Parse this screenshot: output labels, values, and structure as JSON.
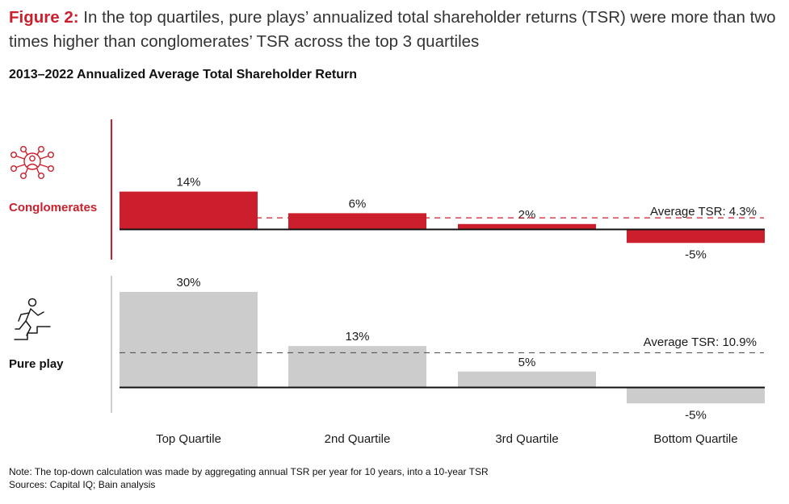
{
  "header": {
    "figure_label": "Figure 2:",
    "figure_title": "In the top quartiles, pure plays’ annualized total shareholder returns (TSR) were more than two times higher than conglomerates’ TSR across the top 3 quartiles",
    "subtitle": "2013–2022 Annualized Average Total Shareholder Return"
  },
  "groups": {
    "conglomerates": {
      "label": "Conglomerates",
      "icon": "network-people-icon"
    },
    "pure_play": {
      "label": "Pure play",
      "icon": "running-person-stairs-icon"
    }
  },
  "chart_data": {
    "type": "bar",
    "categories": [
      "Top Quartile",
      "2nd Quartile",
      "3rd Quartile",
      "Bottom Quartile"
    ],
    "series": [
      {
        "name": "Conglomerates",
        "values": [
          14,
          6,
          2,
          -5
        ],
        "labels": [
          "14%",
          "6%",
          "2%",
          "-5%"
        ],
        "average": 4.3,
        "average_label": "Average TSR: 4.3%",
        "color": "#cc1f2d"
      },
      {
        "name": "Pure play",
        "values": [
          30,
          13,
          5,
          -5
        ],
        "labels": [
          "30%",
          "13%",
          "5%",
          "-5%"
        ],
        "average": 10.9,
        "average_label": "Average TSR: 10.9%",
        "color": "#cccccc"
      }
    ],
    "units": "%",
    "grid": false,
    "legend": "none"
  },
  "footer": {
    "note": "Note: The top-down calculation was made by aggregating annual TSR per year for 10 years, into a 10-year TSR",
    "sources": "Sources: Capital IQ; Bain analysis"
  }
}
